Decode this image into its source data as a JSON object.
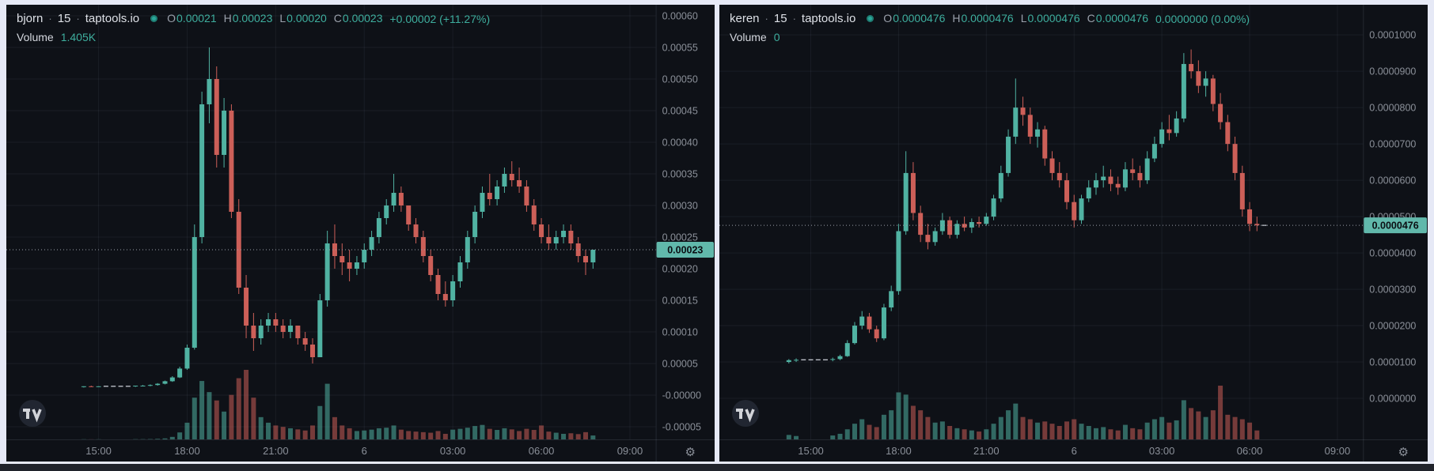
{
  "theme": {
    "page_bg": "#e6e9f6",
    "panel_bg": "#0e1117",
    "bottom_bar": "#20232b",
    "up_color": "#50b2a2",
    "down_color": "#cc5f58",
    "volume_up_color": "rgba(80,178,162,0.55)",
    "volume_down_color": "rgba(204,95,88,0.55)",
    "grid_color": "rgba(170,182,204,0.08)",
    "border_color": "rgba(170,182,204,0.14)",
    "axis_text_color": "#8b9099",
    "flat_dash_color": "#c6cad2",
    "price_line_color": "#9aa0a9",
    "price_label_bg": "#61b8ab",
    "price_label_text": "#0b0e13",
    "header_text": "#dde0e6",
    "header_muted": "#9aa0ab",
    "header_value": "#3eae9e",
    "status_dot": "#2aa79a"
  },
  "icons": {
    "gear": "⚙"
  },
  "charts": [
    {
      "header": {
        "symbol": "bjorn",
        "sep": "·",
        "interval": "15",
        "source": "taptools.io",
        "ohlc": {
          "o_label": "O",
          "o": "0.00021",
          "h_label": "H",
          "h": "0.00023",
          "l_label": "L",
          "l": "0.00020",
          "c_label": "C",
          "c": "0.00023",
          "change": "+0.00002 (+11.27%)"
        },
        "volume_label": "Volume",
        "volume_value": "1.405K"
      }
    },
    {
      "header": {
        "symbol": "keren",
        "sep": "·",
        "interval": "15",
        "source": "taptools.io",
        "ohlc": {
          "o_label": "O",
          "o": "0.0000476",
          "h_label": "H",
          "h": "0.0000476",
          "l_label": "L",
          "l": "0.0000476",
          "c_label": "C",
          "c": "0.0000476",
          "change": "0.0000000 (0.00%)"
        },
        "volume_label": "Volume",
        "volume_value": "0"
      }
    }
  ],
  "chart_data": [
    {
      "type": "candlestick",
      "symbol": "bjorn",
      "title": "bjorn 15 taptools.io",
      "interval_minutes": 15,
      "grid": true,
      "ylim": [
        -7e-05,
        0.0006175
      ],
      "y_tick_values": [
        0.0006,
        0.00055,
        0.0005,
        0.00045,
        0.0004,
        0.00035,
        0.0003,
        0.00025,
        0.0002,
        0.00015,
        0.0001,
        5e-05,
        0,
        -5e-05
      ],
      "y_tick_labels": [
        "0.00060",
        "0.00055",
        "0.00050",
        "0.00045",
        "0.00040",
        "0.00035",
        "0.00030",
        "0.00025",
        "0.00020",
        "0.00015",
        "0.00010",
        "0.00005",
        "-0.00000",
        "-0.00005"
      ],
      "x_tick_labels": [
        "15:00",
        "18:00",
        "21:00",
        "6",
        "03:00",
        "06:00",
        "09:00"
      ],
      "x_tick_slots": [
        12,
        24,
        36,
        48,
        60,
        72,
        84
      ],
      "total_slots": 88,
      "first_candle_slot": 10,
      "volume_pane_height": 88,
      "last_price": 0.00023,
      "last_price_label": "0.00023",
      "last_volume_label": "1.405K",
      "candles": [
        [
          1.3e-05,
          1.4e-05,
          1.2e-05,
          1.4e-05,
          60
        ],
        [
          1.4e-05,
          1.5e-05,
          1.3e-05,
          1.3e-05,
          40
        ],
        [
          1.3e-05,
          1.4e-05,
          1.3e-05,
          1.4e-05,
          50
        ],
        [
          1.4e-05,
          1.4e-05,
          1.4e-05,
          1.4e-05,
          0
        ],
        [
          1.4e-05,
          1.4e-05,
          1.4e-05,
          1.4e-05,
          0
        ],
        [
          1.4e-05,
          1.4e-05,
          1.4e-05,
          1.4e-05,
          0
        ],
        [
          1.4e-05,
          1.4e-05,
          1.4e-05,
          1.4e-05,
          0
        ],
        [
          1.4e-05,
          1.5e-05,
          1.3e-05,
          1.5e-05,
          80
        ],
        [
          1.5e-05,
          1.6e-05,
          1.4e-05,
          1.5e-05,
          90
        ],
        [
          1.5e-05,
          1.7e-05,
          1.4e-05,
          1.6e-05,
          120
        ],
        [
          1.6e-05,
          1.9e-05,
          1.5e-05,
          1.8e-05,
          200
        ],
        [
          1.8e-05,
          2.3e-05,
          1.7e-05,
          2.2e-05,
          350
        ],
        [
          2.2e-05,
          3e-05,
          2.1e-05,
          2.8e-05,
          900
        ],
        [
          2.8e-05,
          4.5e-05,
          2.7e-05,
          4.2e-05,
          2500
        ],
        [
          4.2e-05,
          8e-05,
          4e-05,
          7.5e-05,
          6000
        ],
        [
          7.5e-05,
          0.00027,
          7.2e-05,
          0.00025,
          15000
        ],
        [
          0.00025,
          0.00048,
          0.00024,
          0.00046,
          21000
        ],
        [
          0.00046,
          0.00055,
          0.00043,
          0.0005,
          17000
        ],
        [
          0.0005,
          0.00052,
          0.00036,
          0.00038,
          14000
        ],
        [
          0.00038,
          0.00047,
          0.00036,
          0.00045,
          10000
        ],
        [
          0.00045,
          0.00046,
          0.00028,
          0.00029,
          16000
        ],
        [
          0.00029,
          0.00031,
          0.00016,
          0.00017,
          22000
        ],
        [
          0.00017,
          0.00019,
          9e-05,
          0.00011,
          25000
        ],
        [
          0.00011,
          0.00013,
          7e-05,
          9e-05,
          15000
        ],
        [
          9e-05,
          0.00012,
          8e-05,
          0.00011,
          8000
        ],
        [
          0.00011,
          0.00013,
          0.0001,
          0.00012,
          6000
        ],
        [
          0.00012,
          0.00013,
          0.0001,
          0.00011,
          5000
        ],
        [
          0.00011,
          0.00012,
          9e-05,
          0.0001,
          4500
        ],
        [
          0.0001,
          0.00012,
          9e-05,
          0.00011,
          4000
        ],
        [
          0.00011,
          0.00011,
          8e-05,
          9e-05,
          3600
        ],
        [
          9e-05,
          0.0001,
          7e-05,
          8e-05,
          3200
        ],
        [
          8e-05,
          9e-05,
          5e-05,
          6e-05,
          5000
        ],
        [
          6e-05,
          0.00016,
          6e-05,
          0.00015,
          12000
        ],
        [
          0.00015,
          0.00026,
          0.00014,
          0.00024,
          20000
        ],
        [
          0.00024,
          0.00027,
          0.0002,
          0.00022,
          8000
        ],
        [
          0.00022,
          0.00024,
          0.00019,
          0.00021,
          5000
        ],
        [
          0.00021,
          0.00023,
          0.00018,
          0.0002,
          4000
        ],
        [
          0.0002,
          0.00022,
          0.00019,
          0.00021,
          3000
        ],
        [
          0.00021,
          0.00024,
          0.0002,
          0.00023,
          3200
        ],
        [
          0.00023,
          0.00026,
          0.00022,
          0.00025,
          3500
        ],
        [
          0.00025,
          0.00029,
          0.00024,
          0.00028,
          4000
        ],
        [
          0.00028,
          0.00031,
          0.00027,
          0.0003,
          4200
        ],
        [
          0.0003,
          0.00035,
          0.00029,
          0.00032,
          5000
        ],
        [
          0.00032,
          0.00033,
          0.00029,
          0.0003,
          3500
        ],
        [
          0.0003,
          0.0003,
          0.00026,
          0.00027,
          3000
        ],
        [
          0.00027,
          0.00028,
          0.00024,
          0.00025,
          2800
        ],
        [
          0.00025,
          0.00026,
          0.00021,
          0.00022,
          2600
        ],
        [
          0.00022,
          0.00023,
          0.00018,
          0.00019,
          2400
        ],
        [
          0.00019,
          0.0002,
          0.00015,
          0.00016,
          3000
        ],
        [
          0.00016,
          0.00018,
          0.00014,
          0.00015,
          2000
        ],
        [
          0.00015,
          0.00019,
          0.00014,
          0.00018,
          3500
        ],
        [
          0.00018,
          0.00022,
          0.00017,
          0.00021,
          3800
        ],
        [
          0.00021,
          0.00026,
          0.0002,
          0.00025,
          4200
        ],
        [
          0.00025,
          0.0003,
          0.00024,
          0.00029,
          4800
        ],
        [
          0.00029,
          0.00033,
          0.00028,
          0.00032,
          5200
        ],
        [
          0.00032,
          0.00035,
          0.0003,
          0.00031,
          3800
        ],
        [
          0.00031,
          0.00034,
          0.0003,
          0.00033,
          3400
        ],
        [
          0.00033,
          0.00036,
          0.00032,
          0.00035,
          4000
        ],
        [
          0.00035,
          0.00037,
          0.00033,
          0.00034,
          3600
        ],
        [
          0.00034,
          0.00036,
          0.00032,
          0.00033,
          3000
        ],
        [
          0.00033,
          0.00034,
          0.00029,
          0.0003,
          3800
        ],
        [
          0.0003,
          0.00031,
          0.00026,
          0.00027,
          3400
        ],
        [
          0.00027,
          0.00028,
          0.00024,
          0.00025,
          5000
        ],
        [
          0.00025,
          0.00027,
          0.00023,
          0.00024,
          2800
        ],
        [
          0.00024,
          0.00026,
          0.00023,
          0.00025,
          2400
        ],
        [
          0.00025,
          0.00027,
          0.00024,
          0.00026,
          2000
        ],
        [
          0.00026,
          0.00027,
          0.00023,
          0.00024,
          2200
        ],
        [
          0.00024,
          0.00025,
          0.00021,
          0.00022,
          1900
        ],
        [
          0.00022,
          0.00023,
          0.00019,
          0.00021,
          2600
        ],
        [
          0.00021,
          0.00023,
          0.0002,
          0.00023,
          1405
        ]
      ]
    },
    {
      "type": "candlestick",
      "symbol": "keren",
      "title": "keren 15 taptools.io",
      "interval_minutes": 15,
      "grid": true,
      "ylim": [
        -1.13e-05,
        0.0001083
      ],
      "y_tick_values": [
        0.0001,
        9e-05,
        8e-05,
        7e-05,
        6e-05,
        5e-05,
        4e-05,
        3e-05,
        2e-05,
        1e-05,
        0
      ],
      "y_tick_labels": [
        "0.0001000",
        "0.0000900",
        "0.0000800",
        "0.0000700",
        "0.0000600",
        "0.0000500",
        "0.0000400",
        "0.0000300",
        "0.0000200",
        "0.0000100",
        "0.0000000"
      ],
      "x_tick_labels": [
        "15:00",
        "18:00",
        "21:00",
        "6",
        "03:00",
        "06:00",
        "09:00"
      ],
      "x_tick_slots": [
        12,
        24,
        36,
        48,
        60,
        72,
        84
      ],
      "total_slots": 88,
      "first_candle_slot": 9,
      "volume_pane_height": 68,
      "last_price": 4.76e-05,
      "last_price_label": "0.0000476",
      "last_volume_label": "0",
      "candles": [
        [
          1e-05,
          1.08e-05,
          9.6e-06,
          1.05e-05,
          400
        ],
        [
          1.05e-05,
          1.1e-05,
          1e-05,
          1.06e-05,
          300
        ],
        [
          1.06e-05,
          1.06e-05,
          1.06e-05,
          1.06e-05,
          0
        ],
        [
          1.06e-05,
          1.06e-05,
          1.06e-05,
          1.06e-05,
          0
        ],
        [
          1.06e-05,
          1.06e-05,
          1.06e-05,
          1.06e-05,
          0
        ],
        [
          1.06e-05,
          1.06e-05,
          1.06e-05,
          1.06e-05,
          0
        ],
        [
          1.06e-05,
          1.12e-05,
          1.02e-05,
          1.08e-05,
          350
        ],
        [
          1.08e-05,
          1.2e-05,
          1.05e-05,
          1.16e-05,
          500
        ],
        [
          1.16e-05,
          1.6e-05,
          1.14e-05,
          1.52e-05,
          900
        ],
        [
          1.52e-05,
          2.1e-05,
          1.48e-05,
          2e-05,
          1400
        ],
        [
          2e-05,
          2.4e-05,
          1.9e-05,
          2.25e-05,
          1800
        ],
        [
          2.25e-05,
          2.35e-05,
          1.8e-05,
          1.9e-05,
          1300
        ],
        [
          1.9e-05,
          2e-05,
          1.55e-05,
          1.65e-05,
          1100
        ],
        [
          1.65e-05,
          2.6e-05,
          1.6e-05,
          2.5e-05,
          2200
        ],
        [
          2.5e-05,
          3.1e-05,
          2.4e-05,
          2.95e-05,
          2600
        ],
        [
          2.95e-05,
          4.8e-05,
          2.85e-05,
          4.6e-05,
          4200
        ],
        [
          4.6e-05,
          6.8e-05,
          4.5e-05,
          6.2e-05,
          4000
        ],
        [
          6.2e-05,
          6.5e-05,
          4.9e-05,
          5.1e-05,
          3000
        ],
        [
          5.1e-05,
          5.3e-05,
          4.3e-05,
          4.5e-05,
          2600
        ],
        [
          4.5e-05,
          4.8e-05,
          4.1e-05,
          4.3e-05,
          2000
        ],
        [
          4.3e-05,
          4.7e-05,
          4.2e-05,
          4.6e-05,
          1500
        ],
        [
          4.6e-05,
          5.1e-05,
          4.5e-05,
          4.9e-05,
          1600
        ],
        [
          4.9e-05,
          5e-05,
          4.4e-05,
          4.5e-05,
          1200
        ],
        [
          4.5e-05,
          4.9e-05,
          4.4e-05,
          4.8e-05,
          1000
        ],
        [
          4.8e-05,
          5e-05,
          4.6e-05,
          4.7e-05,
          900
        ],
        [
          4.7e-05,
          4.95e-05,
          4.55e-05,
          4.85e-05,
          800
        ],
        [
          4.85e-05,
          5e-05,
          4.7e-05,
          4.8e-05,
          700
        ],
        [
          4.8e-05,
          5.1e-05,
          4.75e-05,
          5e-05,
          900
        ],
        [
          5e-05,
          5.6e-05,
          4.9e-05,
          5.5e-05,
          1400
        ],
        [
          5.5e-05,
          6.4e-05,
          5.4e-05,
          6.2e-05,
          2000
        ],
        [
          6.2e-05,
          7.4e-05,
          6.1e-05,
          7.2e-05,
          2600
        ],
        [
          7.2e-05,
          8.8e-05,
          7e-05,
          8e-05,
          3200
        ],
        [
          8e-05,
          8.3e-05,
          7.5e-05,
          7.8e-05,
          2000
        ],
        [
          7.8e-05,
          8e-05,
          7e-05,
          7.2e-05,
          1800
        ],
        [
          7.2e-05,
          7.6e-05,
          6.9e-05,
          7.4e-05,
          1500
        ],
        [
          7.4e-05,
          7.5e-05,
          6.4e-05,
          6.6e-05,
          1600
        ],
        [
          6.6e-05,
          6.8e-05,
          6e-05,
          6.2e-05,
          1400
        ],
        [
          6.2e-05,
          6.5e-05,
          5.8e-05,
          6e-05,
          1200
        ],
        [
          6e-05,
          6.2e-05,
          5.2e-05,
          5.4e-05,
          1600
        ],
        [
          5.4e-05,
          5.6e-05,
          4.7e-05,
          4.9e-05,
          1800
        ],
        [
          4.9e-05,
          5.6e-05,
          4.8e-05,
          5.5e-05,
          1400
        ],
        [
          5.5e-05,
          6e-05,
          5.4e-05,
          5.8e-05,
          1200
        ],
        [
          5.8e-05,
          6.2e-05,
          5.6e-05,
          6e-05,
          1000
        ],
        [
          6e-05,
          6.4e-05,
          5.8e-05,
          6.1e-05,
          1100
        ],
        [
          6.1e-05,
          6.3e-05,
          5.7e-05,
          5.9e-05,
          900
        ],
        [
          5.9e-05,
          6.1e-05,
          5.6e-05,
          5.8e-05,
          800
        ],
        [
          5.8e-05,
          6.5e-05,
          5.7e-05,
          6.3e-05,
          1300
        ],
        [
          6.3e-05,
          6.6e-05,
          6e-05,
          6.2e-05,
          1000
        ],
        [
          6.2e-05,
          6.4e-05,
          5.8e-05,
          6e-05,
          900
        ],
        [
          6e-05,
          6.8e-05,
          5.9e-05,
          6.6e-05,
          1500
        ],
        [
          6.6e-05,
          7.2e-05,
          6.5e-05,
          7e-05,
          1800
        ],
        [
          7e-05,
          7.6e-05,
          6.9e-05,
          7.4e-05,
          2000
        ],
        [
          7.4e-05,
          7.8e-05,
          7.1e-05,
          7.3e-05,
          1500
        ],
        [
          7.3e-05,
          7.9e-05,
          7.2e-05,
          7.7e-05,
          1700
        ],
        [
          7.7e-05,
          9.5e-05,
          7.6e-05,
          9.2e-05,
          3500
        ],
        [
          9.2e-05,
          9.6e-05,
          8.8e-05,
          9e-05,
          2800
        ],
        [
          9e-05,
          9.3e-05,
          8.4e-05,
          8.6e-05,
          2500
        ],
        [
          8.6e-05,
          9e-05,
          8.3e-05,
          8.8e-05,
          2000
        ],
        [
          8.8e-05,
          8.9e-05,
          7.9e-05,
          8.1e-05,
          2600
        ],
        [
          8.1e-05,
          8.4e-05,
          7.4e-05,
          7.6e-05,
          4800
        ],
        [
          7.6e-05,
          7.8e-05,
          6.8e-05,
          7e-05,
          2200
        ],
        [
          7e-05,
          7.2e-05,
          6e-05,
          6.2e-05,
          2000
        ],
        [
          6.2e-05,
          6.4e-05,
          5e-05,
          5.2e-05,
          1800
        ],
        [
          5.2e-05,
          5.4e-05,
          4.6e-05,
          4.8e-05,
          1500
        ],
        [
          4.8e-05,
          5e-05,
          4.6e-05,
          4.76e-05,
          800
        ],
        [
          4.76e-05,
          4.76e-05,
          4.76e-05,
          4.76e-05,
          0
        ]
      ]
    }
  ]
}
